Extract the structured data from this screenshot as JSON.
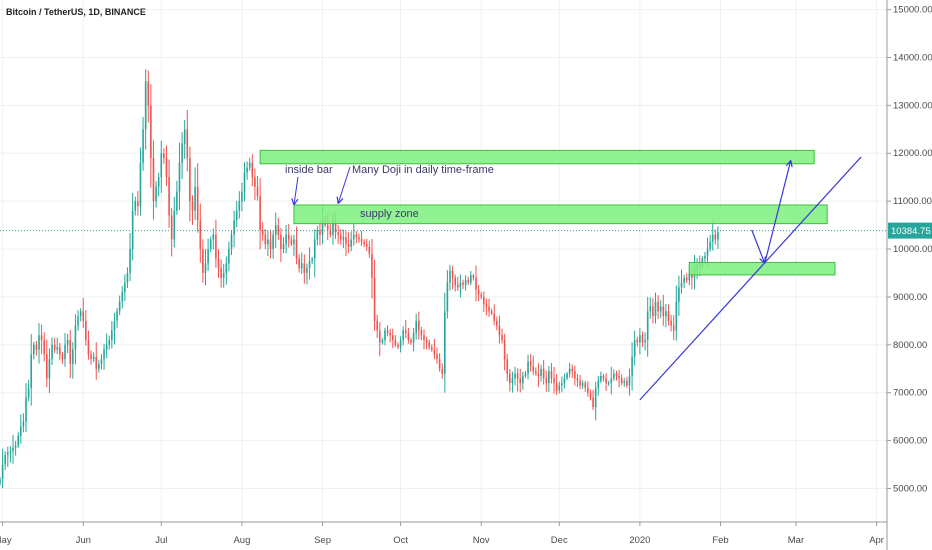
{
  "header": {
    "title": "Bitcoin / TetherUS, 1D, BINANCE"
  },
  "chart_data": {
    "type": "candlestick",
    "title": "Bitcoin / TetherUS, 1D, BINANCE",
    "ylim": [
      4300,
      15200
    ],
    "y_ticks": [
      {
        "value": 5000,
        "label": "5000.00"
      },
      {
        "value": 6000,
        "label": "6000.00"
      },
      {
        "value": 7000,
        "label": "7000.00"
      },
      {
        "value": 8000,
        "label": "8000.00"
      },
      {
        "value": 9000,
        "label": "9000.00"
      },
      {
        "value": 10000,
        "label": "10000.00"
      },
      {
        "value": 11000,
        "label": "11000.00"
      },
      {
        "value": 12000,
        "label": "12000.00"
      },
      {
        "value": 13000,
        "label": "13000.00"
      },
      {
        "value": 14000,
        "label": "14000.00"
      },
      {
        "value": 15000,
        "label": "15000.00"
      }
    ],
    "x_start": "2019-04-30",
    "x_end": "2020-04-05",
    "x_ticks": [
      {
        "date": "2019-05-01",
        "label": "May"
      },
      {
        "date": "2019-06-01",
        "label": "Jun"
      },
      {
        "date": "2019-07-01",
        "label": "Jul"
      },
      {
        "date": "2019-08-01",
        "label": "Aug"
      },
      {
        "date": "2019-09-01",
        "label": "Sep"
      },
      {
        "date": "2019-10-01",
        "label": "Oct"
      },
      {
        "date": "2019-11-01",
        "label": "Nov"
      },
      {
        "date": "2019-12-01",
        "label": "Dec"
      },
      {
        "date": "2020-01-01",
        "label": "2020"
      },
      {
        "date": "2020-02-01",
        "label": "Feb"
      },
      {
        "date": "2020-03-01",
        "label": "Mar"
      },
      {
        "date": "2020-04-01",
        "label": "Apr"
      }
    ],
    "first_date": "2019-04-30",
    "closes": [
      5200,
      5500,
      5700,
      5750,
      5780,
      5850,
      5900,
      6100,
      6300,
      6400,
      6900,
      7100,
      7800,
      8000,
      7900,
      8200,
      8100,
      7800,
      7300,
      7700,
      8000,
      7900,
      7950,
      7800,
      7700,
      8000,
      8100,
      7600,
      7900,
      8400,
      8600,
      8700,
      8500,
      8100,
      7800,
      7700,
      7750,
      7500,
      7600,
      7700,
      7900,
      8000,
      8100,
      8300,
      8500,
      8700,
      8900,
      9100,
      9300,
      9500,
      10000,
      10800,
      11000,
      10900,
      11800,
      12500,
      13500,
      13000,
      11900,
      11000,
      11300,
      11500,
      12000,
      11900,
      11500,
      10700,
      10200,
      10800,
      11200,
      11800,
      12200,
      12500,
      11900,
      11000,
      10800,
      11300,
      10600,
      10000,
      9500,
      9700,
      10000,
      10200,
      10300,
      9800,
      9600,
      9400,
      9500,
      9700,
      10000,
      10300,
      10600,
      10800,
      11000,
      11200,
      11600,
      11700,
      11800,
      11500,
      11300,
      11100,
      10400,
      10300,
      10100,
      10200,
      10000,
      10300,
      10500,
      10300,
      10000,
      10100,
      10300,
      10200,
      10100,
      10200,
      9800,
      9600,
      9700,
      9500,
      9600,
      9750,
      9800,
      10200,
      10400,
      10300,
      10600,
      10500,
      10400,
      10300,
      10600,
      10350,
      10300,
      10200,
      10250,
      10100,
      10050,
      10200,
      10300,
      10250,
      10200,
      10150,
      10100,
      10050,
      9900,
      9400,
      8500,
      8300,
      8050,
      8100,
      8300,
      8250,
      8200,
      8100,
      8000,
      7950,
      8100,
      8300,
      8250,
      8100,
      8050,
      8250,
      8500,
      8300,
      8200,
      8100,
      8050,
      7950,
      7900,
      7800,
      7700,
      7500,
      7400,
      8700,
      9300,
      9550,
      9400,
      9250,
      9200,
      9300,
      9250,
      9350,
      9300,
      9450,
      9400,
      9150,
      9050,
      9000,
      8850,
      8800,
      8700,
      8650,
      8500,
      8400,
      8200,
      8100,
      7700,
      7400,
      7200,
      7300,
      7400,
      7300,
      7200,
      7350,
      7400,
      7650,
      7550,
      7450,
      7400,
      7350,
      7500,
      7300,
      7200,
      7450,
      7300,
      7200,
      7050,
      7150,
      7200,
      7300,
      7400,
      7500,
      7450,
      7300,
      7250,
      7150,
      7200,
      7100,
      7000,
      6900,
      6700,
      7100,
      7250,
      7350,
      7300,
      7200,
      7200,
      7300,
      7400,
      7350,
      7300,
      7200,
      7250,
      7150,
      7350,
      7750,
      8100,
      8050,
      8200,
      8050,
      8100,
      8700,
      8800,
      8600,
      8900,
      8700,
      8800,
      8600,
      8700,
      8500,
      8400,
      8300,
      8900,
      9200,
      9300,
      9400,
      9350,
      9500,
      9400,
      9600,
      9700,
      9650,
      9800,
      9850,
      10000,
      10150,
      10300,
      10200,
      10350
    ]
  },
  "annotations": {
    "inside_bar": "inside bar",
    "doji": "Many Doji in daily time-frame",
    "supply_zone": "supply zone"
  },
  "zones": [
    {
      "name": "upper-resistance-zone",
      "start": "2019-08-08",
      "end": "2020-03-08",
      "y_low": 11780,
      "y_high": 12060
    },
    {
      "name": "supply-zone",
      "start": "2019-08-21",
      "end": "2020-03-13",
      "y_low": 10530,
      "y_high": 10920
    },
    {
      "name": "support-zone",
      "start": "2020-01-20",
      "end": "2020-03-16",
      "y_low": 9460,
      "y_high": 9720
    }
  ],
  "trendlines": [
    {
      "name": "rising-trendline",
      "from": {
        "date": "2020-01-01",
        "value": 6850
      },
      "to": {
        "date": "2020-03-26",
        "value": 11920
      }
    }
  ],
  "projection_path": [
    {
      "date": "2020-02-13",
      "value": 10400
    },
    {
      "date": "2020-02-18",
      "value": 9700
    },
    {
      "date": "2020-02-28",
      "value": 11850
    }
  ],
  "current_price": {
    "value": 10384.75,
    "label": "10384.75"
  },
  "colors": {
    "up": "#26a69a",
    "down": "#ef5350",
    "zone_fill": "#7cf07c",
    "zone_stroke": "#3fbf3f",
    "trendline": "#3a3ad6",
    "price_badge": "#26a69a",
    "grid": "#eef0f3"
  }
}
